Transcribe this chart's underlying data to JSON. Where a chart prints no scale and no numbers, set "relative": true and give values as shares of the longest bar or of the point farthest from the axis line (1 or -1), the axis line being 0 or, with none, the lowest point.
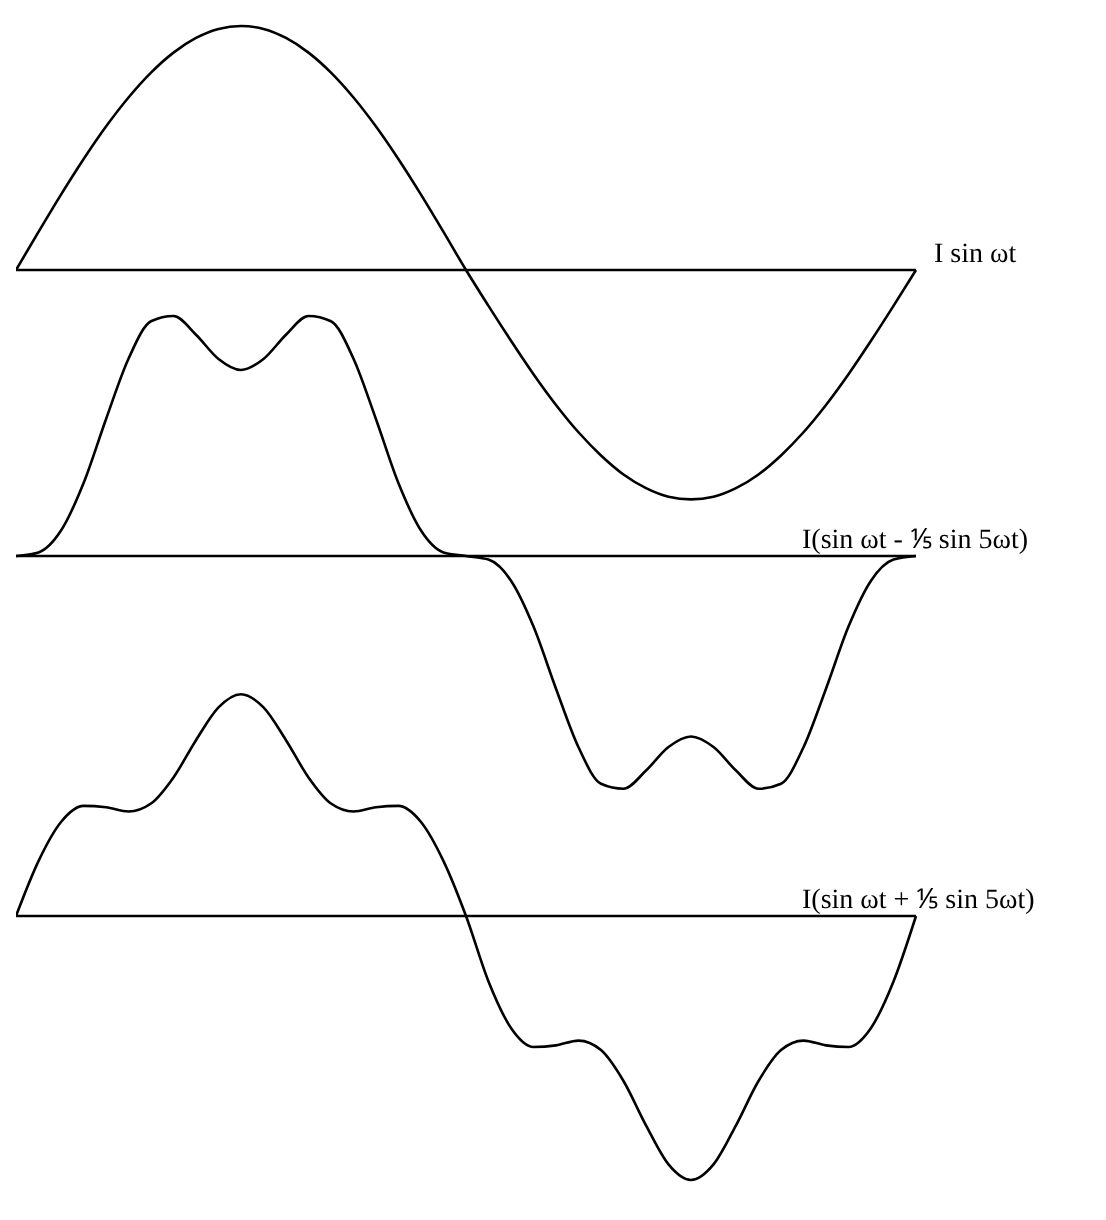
{
  "chart_data": [
    {
      "type": "line",
      "relative": true,
      "categories": [
        null,
        null,
        null,
        null,
        null,
        null,
        null,
        null,
        null,
        null,
        null,
        null,
        null,
        null,
        null,
        null,
        null,
        null,
        null,
        null,
        null,
        null,
        null,
        null,
        null,
        null,
        null,
        null,
        null,
        null,
        null,
        null,
        null,
        null,
        null,
        null,
        null,
        null,
        null,
        null,
        null
      ],
      "series": [
        {
          "name": "I sin ωt",
          "color": "#000000",
          "values": [
            0,
            0.156,
            0.309,
            0.454,
            0.588,
            0.707,
            0.809,
            0.891,
            0.951,
            0.988,
            1,
            0.988,
            0.951,
            0.891,
            0.809,
            0.707,
            0.588,
            0.454,
            0.309,
            0.156,
            0,
            -0.147,
            -0.29,
            -0.427,
            -0.553,
            -0.665,
            -0.76,
            -0.838,
            -0.894,
            -0.929,
            -0.94,
            -0.929,
            -0.894,
            -0.838,
            -0.76,
            -0.665,
            -0.553,
            -0.427,
            -0.29,
            -0.147,
            0
          ]
        }
      ]
    },
    {
      "type": "line",
      "relative": true,
      "categories": [
        null,
        null,
        null,
        null,
        null,
        null,
        null,
        null,
        null,
        null,
        null,
        null,
        null,
        null,
        null,
        null,
        null,
        null,
        null,
        null,
        null,
        null,
        null,
        null,
        null,
        null,
        null,
        null,
        null,
        null,
        null,
        null,
        null,
        null,
        null,
        null,
        null,
        null,
        null,
        null,
        null
      ],
      "series": [
        {
          "name": "I(sin ωt - ⅕ sin 5ωt)",
          "color": "#000000",
          "values": [
            0,
            0.015,
            0.106,
            0.303,
            0.57,
            0.822,
            0.978,
            1,
            0.922,
            0.821,
            0.775,
            0.821,
            0.922,
            1,
            0.978,
            0.822,
            0.57,
            0.303,
            0.106,
            0.015,
            0,
            -0.015,
            -0.103,
            -0.294,
            -0.553,
            -0.797,
            -0.949,
            -0.97,
            -0.894,
            -0.796,
            -0.752,
            -0.796,
            -0.894,
            -0.97,
            -0.949,
            -0.797,
            -0.553,
            -0.294,
            -0.103,
            -0.015,
            0
          ]
        }
      ]
    },
    {
      "type": "line",
      "relative": true,
      "categories": [
        null,
        null,
        null,
        null,
        null,
        null,
        null,
        null,
        null,
        null,
        null,
        null,
        null,
        null,
        null,
        null,
        null,
        null,
        null,
        null,
        null,
        null,
        null,
        null,
        null,
        null,
        null,
        null,
        null,
        null,
        null,
        null,
        null,
        null,
        null,
        null,
        null,
        null,
        null,
        null,
        null
      ],
      "series": [
        {
          "name": "I(sin ωt + ⅕ sin 5ωt)",
          "color": "#000000",
          "values": [
            0,
            0.208,
            0.356,
            0.417,
            0.412,
            0.396,
            0.426,
            0.525,
            0.666,
            0.79,
            0.84,
            0.79,
            0.666,
            0.525,
            0.426,
            0.396,
            0.412,
            0.417,
            0.356,
            0.208,
            0,
            -0.248,
            -0.424,
            -0.496,
            -0.49,
            -0.472,
            -0.508,
            -0.625,
            -0.793,
            -0.941,
            -1,
            -0.941,
            -0.793,
            -0.625,
            -0.508,
            -0.472,
            -0.49,
            -0.496,
            -0.424,
            -0.248,
            0
          ]
        }
      ]
    }
  ]
}
